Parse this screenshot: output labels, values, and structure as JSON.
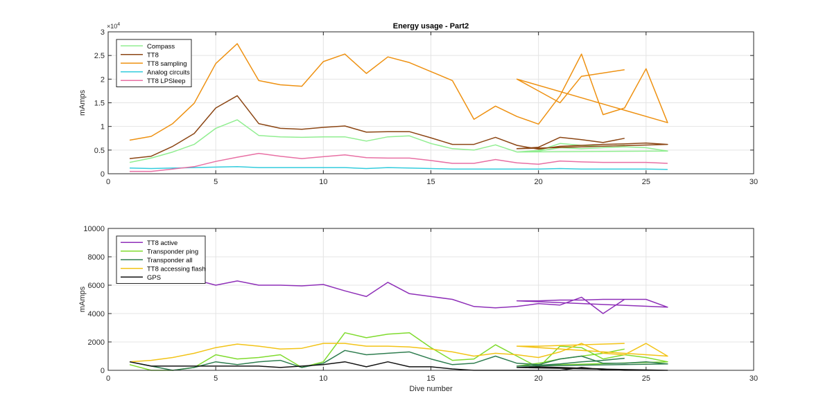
{
  "chart_data": [
    {
      "type": "line",
      "title": "Energy usage - Part2",
      "xlabel": "",
      "ylabel": "mAmps",
      "xlim": [
        0,
        30
      ],
      "ylim": [
        0,
        30000
      ],
      "x_ticks": [
        "0",
        "5",
        "10",
        "15",
        "20",
        "25",
        "30"
      ],
      "y_ticks": [
        "0",
        "0.5",
        "1",
        "1.5",
        "2",
        "2.5",
        "3"
      ],
      "y_exponent": "×10",
      "y_exponent_power": "4",
      "grid": true,
      "legend_position": "top-left",
      "series": [
        {
          "name": "Compass",
          "color": "#90ee90",
          "x": [
            1,
            2,
            3,
            4,
            5,
            6,
            7,
            8,
            9,
            10,
            11,
            12,
            13,
            14,
            15,
            16,
            17,
            18,
            19,
            20,
            21,
            22,
            23,
            24,
            25,
            26,
            19,
            20,
            21,
            22,
            23,
            24
          ],
          "y": [
            2400,
            3300,
            4600,
            6200,
            9600,
            11400,
            8100,
            7800,
            7700,
            7800,
            7800,
            6900,
            7800,
            8000,
            6400,
            5300,
            5000,
            6100,
            4600,
            4800,
            5500,
            5300,
            5500,
            5700,
            5500,
            4800,
            4600,
            4900,
            6400,
            6000,
            5800,
            6000
          ]
        },
        {
          "name": "TT8",
          "color": "#8b4513",
          "x": [
            1,
            2,
            3,
            4,
            5,
            6,
            7,
            8,
            9,
            10,
            11,
            12,
            13,
            14,
            15,
            16,
            17,
            18,
            19,
            20,
            21,
            22,
            23,
            24,
            25,
            26,
            19,
            20,
            21,
            22,
            23,
            24
          ],
          "y": [
            3200,
            3700,
            5800,
            8500,
            13900,
            16500,
            10600,
            9600,
            9400,
            9800,
            10100,
            8800,
            8900,
            8900,
            7600,
            6200,
            6200,
            7700,
            6000,
            5200,
            5800,
            6000,
            6200,
            6300,
            6500,
            6200,
            5300,
            5600,
            7700,
            7200,
            6600,
            7500
          ]
        },
        {
          "name": "TT8 sampling",
          "color": "#ee9111",
          "x": [
            1,
            2,
            3,
            4,
            5,
            6,
            7,
            8,
            9,
            10,
            11,
            12,
            13,
            14,
            15,
            16,
            17,
            18,
            19,
            20,
            21,
            22,
            23,
            24,
            25,
            26,
            19,
            20,
            21,
            22,
            23,
            24
          ],
          "y": [
            7100,
            7900,
            10600,
            14900,
            23300,
            27500,
            19700,
            18800,
            18500,
            23700,
            25300,
            21200,
            24700,
            23500,
            21600,
            19700,
            11500,
            14300,
            12100,
            10500,
            16500,
            25300,
            12500,
            13900,
            22200,
            10800,
            20000,
            17500,
            15000,
            20600,
            21300,
            22000
          ]
        },
        {
          "name": "Analog circuits",
          "color": "#33ccdd",
          "x": [
            1,
            2,
            3,
            4,
            5,
            6,
            7,
            8,
            9,
            10,
            11,
            12,
            13,
            14,
            15,
            16,
            17,
            18,
            19,
            20,
            21,
            22,
            23,
            24,
            25,
            26
          ],
          "y": [
            1200,
            1100,
            1200,
            1300,
            1400,
            1500,
            1300,
            1300,
            1300,
            1300,
            1300,
            1100,
            1300,
            1200,
            1100,
            1000,
            1000,
            1000,
            1000,
            1000,
            1100,
            1000,
            1000,
            1000,
            1000,
            900
          ]
        },
        {
          "name": "TT8 LPSleep",
          "color": "#e86fa3",
          "x": [
            1,
            2,
            3,
            4,
            5,
            6,
            7,
            8,
            9,
            10,
            11,
            12,
            13,
            14,
            15,
            16,
            17,
            18,
            19,
            20,
            21,
            22,
            23,
            24,
            25,
            26
          ],
          "y": [
            500,
            500,
            1000,
            1500,
            2600,
            3500,
            4300,
            3700,
            3200,
            3600,
            4000,
            3400,
            3300,
            3300,
            2800,
            2200,
            2200,
            3000,
            2300,
            2000,
            2700,
            2500,
            2400,
            2400,
            2400,
            2200
          ]
        }
      ]
    },
    {
      "type": "line",
      "title": "",
      "xlabel": "Dive number",
      "ylabel": "mAmps",
      "xlim": [
        0,
        30
      ],
      "ylim": [
        0,
        10000
      ],
      "x_ticks": [
        "0",
        "5",
        "10",
        "15",
        "20",
        "25",
        "30"
      ],
      "y_ticks": [
        "0",
        "2000",
        "4000",
        "6000",
        "8000",
        "10000"
      ],
      "grid": true,
      "legend_position": "top-left",
      "series": [
        {
          "name": "TT8 active",
          "color": "#8e2fb8",
          "x": [
            1,
            2,
            3,
            4,
            5,
            6,
            7,
            8,
            9,
            10,
            11,
            12,
            13,
            14,
            15,
            16,
            17,
            18,
            19,
            20,
            21,
            22,
            23,
            24,
            25,
            26,
            19,
            20,
            21,
            22,
            23,
            24
          ],
          "y": [
            6500,
            6500,
            6500,
            6400,
            6000,
            6300,
            6000,
            6000,
            5950,
            6050,
            5600,
            5200,
            6200,
            5400,
            5200,
            5000,
            4500,
            4400,
            4500,
            4700,
            4600,
            5150,
            4000,
            5000,
            5000,
            4450,
            4900,
            4900,
            4950,
            4950,
            5000,
            5000
          ]
        },
        {
          "name": "Transponder ping",
          "color": "#7fdb2d",
          "x": [
            1,
            2,
            3,
            4,
            5,
            6,
            7,
            8,
            9,
            10,
            11,
            12,
            13,
            14,
            15,
            16,
            17,
            18,
            19,
            20,
            21,
            22,
            23,
            24,
            25,
            26,
            19,
            20,
            21,
            22,
            23,
            24
          ],
          "y": [
            400,
            0,
            0,
            200,
            1100,
            800,
            900,
            1100,
            200,
            600,
            2650,
            2300,
            2550,
            2650,
            1600,
            700,
            800,
            1800,
            1000,
            200,
            1700,
            1600,
            800,
            1100,
            900,
            600,
            300,
            500,
            800,
            1000,
            1200,
            1500
          ]
        },
        {
          "name": "Transponder all",
          "color": "#2e7d4f",
          "x": [
            1,
            2,
            3,
            4,
            5,
            6,
            7,
            8,
            9,
            10,
            11,
            12,
            13,
            14,
            15,
            16,
            17,
            18,
            19,
            20,
            21,
            22,
            23,
            24,
            25,
            26,
            19,
            20,
            21,
            22,
            23,
            24
          ],
          "y": [
            600,
            300,
            0,
            200,
            600,
            400,
            600,
            700,
            200,
            500,
            1400,
            1100,
            1200,
            1300,
            800,
            400,
            500,
            1000,
            500,
            400,
            800,
            1000,
            500,
            500,
            600,
            450,
            300,
            350,
            450,
            600,
            700,
            850
          ]
        },
        {
          "name": "TT8 accessing flash",
          "color": "#f2c316",
          "x": [
            1,
            2,
            3,
            4,
            5,
            6,
            7,
            8,
            9,
            10,
            11,
            12,
            13,
            14,
            15,
            16,
            17,
            18,
            19,
            20,
            21,
            22,
            23,
            24,
            25,
            26,
            19,
            20,
            21,
            22,
            23,
            24
          ],
          "y": [
            600,
            700,
            900,
            1200,
            1600,
            1850,
            1700,
            1500,
            1550,
            1900,
            1900,
            1700,
            1700,
            1650,
            1500,
            1300,
            1000,
            1200,
            1100,
            900,
            1300,
            1900,
            1200,
            1100,
            1900,
            1000,
            1700,
            1700,
            1750,
            1800,
            1850,
            1900
          ]
        },
        {
          "name": "GPS",
          "color": "#111111",
          "x": [
            1,
            2,
            3,
            4,
            5,
            6,
            7,
            8,
            9,
            10,
            11,
            12,
            13,
            14,
            15,
            16,
            17,
            18,
            19,
            20,
            21,
            22,
            23,
            24,
            25,
            26,
            19,
            20,
            21,
            22,
            23,
            24
          ],
          "y": [
            600,
            300,
            300,
            300,
            300,
            300,
            300,
            200,
            300,
            400,
            600,
            250,
            600,
            250,
            250,
            100,
            0,
            0,
            0,
            0,
            0,
            200,
            50,
            0,
            0,
            0,
            200,
            250,
            200,
            150,
            100,
            0
          ]
        }
      ]
    }
  ]
}
